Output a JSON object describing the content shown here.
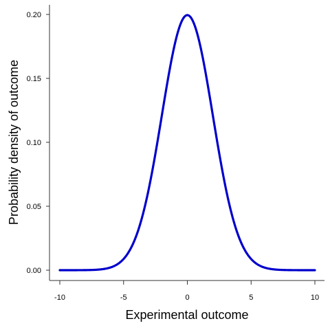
{
  "chart_data": {
    "type": "line",
    "xlabel": "Experimental outcome",
    "ylabel": "Probability density of outcome",
    "xlim": [
      -10,
      10
    ],
    "ylim": [
      0,
      0.2
    ],
    "xticks": [
      "-10",
      "-5",
      "0",
      "5",
      "10"
    ],
    "yticks": [
      "0.00",
      "0.05",
      "0.10",
      "0.15",
      "0.20"
    ],
    "grid": false,
    "legend": "none",
    "series": [
      {
        "color": "#0000cc",
        "distribution": "normal",
        "mean": 0,
        "sd": 2,
        "peak": 0.1995
      }
    ]
  }
}
